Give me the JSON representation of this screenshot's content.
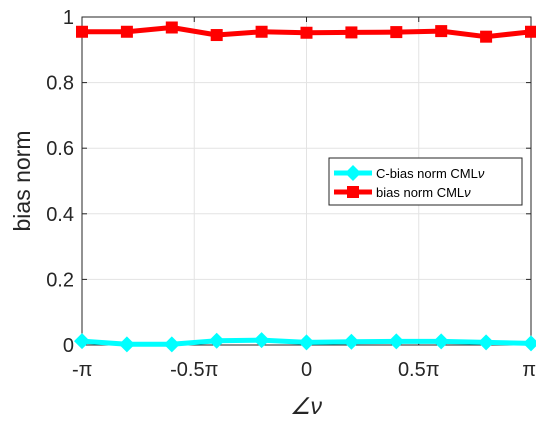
{
  "chart_data": {
    "type": "line",
    "xlabel": "∠ν",
    "ylabel": "bias norm",
    "xlim": [
      -3.14159,
      3.14159
    ],
    "ylim": [
      0,
      1
    ],
    "grid": true,
    "legend_position": "right",
    "xticks": [
      {
        "value": -3.14159,
        "label": "-π"
      },
      {
        "value": -1.5708,
        "label": "-0.5π"
      },
      {
        "value": 0,
        "label": "0"
      },
      {
        "value": 1.5708,
        "label": "0.5π"
      },
      {
        "value": 3.14159,
        "label": "π"
      }
    ],
    "yticks": [
      {
        "value": 0,
        "label": "0"
      },
      {
        "value": 0.2,
        "label": "0.2"
      },
      {
        "value": 0.4,
        "label": "0.4"
      },
      {
        "value": 0.6,
        "label": "0.6"
      },
      {
        "value": 0.8,
        "label": "0.8"
      },
      {
        "value": 1,
        "label": "1"
      }
    ],
    "x": [
      -3.14159,
      -2.51327,
      -1.88496,
      -1.25664,
      -0.62832,
      0,
      0.62832,
      1.25664,
      1.88496,
      2.51327,
      3.14159
    ],
    "series": [
      {
        "name": "C-bias norm CML",
        "name_sub": "ν",
        "color": "#00FFFF",
        "marker": "diamond",
        "values": [
          0.012,
          0.002,
          0.002,
          0.013,
          0.015,
          0.008,
          0.01,
          0.011,
          0.011,
          0.008,
          0.005
        ]
      },
      {
        "name": "bias norm CML",
        "name_sub": "ν",
        "color": "#FF0000",
        "marker": "square",
        "values": [
          0.955,
          0.955,
          0.968,
          0.945,
          0.955,
          0.952,
          0.953,
          0.954,
          0.957,
          0.94,
          0.955
        ]
      }
    ]
  }
}
